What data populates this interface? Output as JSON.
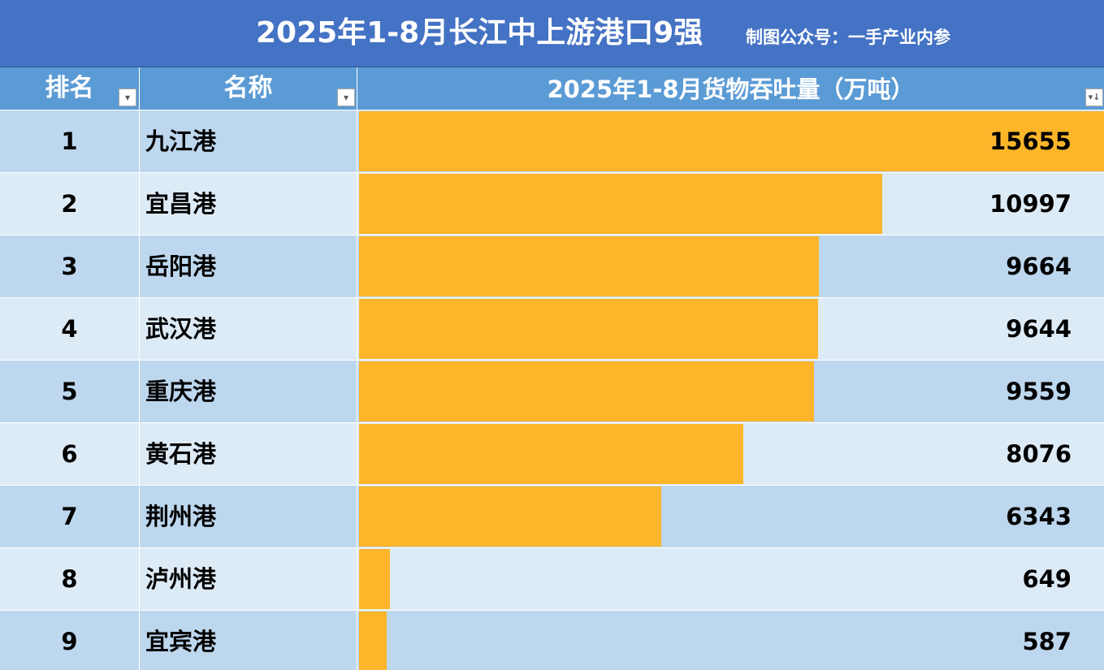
{
  "title": "2025年1-8月长江中上游港口9强",
  "subtitle": "制图公众号：一手产业内参",
  "columns": {
    "rank": "排名",
    "name": "名称",
    "value": "2025年1-8月货物吞吐量（万吨）"
  },
  "filter_icons": {
    "rank": "▾",
    "name": "▾",
    "value": "▾↓"
  },
  "colors": {
    "title_bg": "#4472c4",
    "header_bg": "#5b9bd5",
    "row_dark": "#bdd7ee",
    "row_light": "#ddebf7",
    "bar": "#fdb62a"
  },
  "chart_data": {
    "type": "bar",
    "title": "2025年1-8月长江中上游港口9强",
    "orientation": "horizontal",
    "value_label": "2025年1-8月货物吞吐量（万吨）",
    "categories": [
      "九江港",
      "宜昌港",
      "岳阳港",
      "武汉港",
      "重庆港",
      "黄石港",
      "荆州港",
      "泸州港",
      "宜宾港"
    ],
    "ranks": [
      "1",
      "2",
      "3",
      "4",
      "5",
      "6",
      "7",
      "8",
      "9"
    ],
    "values": [
      15655,
      10997,
      9664,
      9644,
      9559,
      8076,
      6343,
      649,
      587
    ],
    "xlim": [
      0,
      15655
    ],
    "data_labels": true,
    "grid": false
  }
}
